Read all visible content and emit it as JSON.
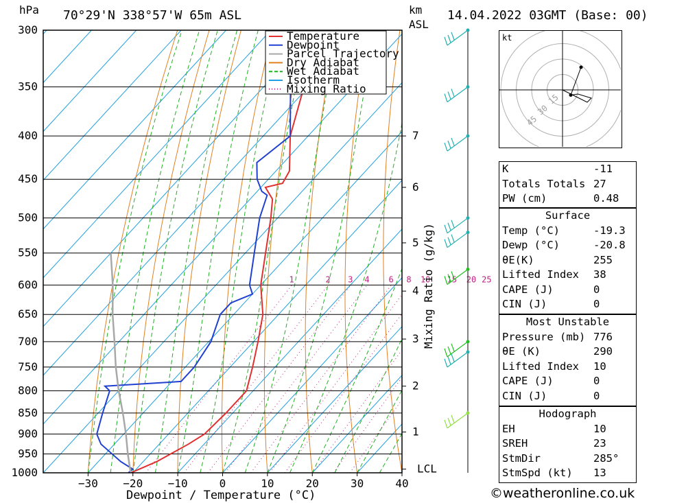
{
  "header": {
    "location": "70°29'N  338°57'W  65m  ASL",
    "datetime": "14.04.2022  03GMT  (Base: 00)",
    "hpa_label": "hPa",
    "km_label": "km",
    "asl_label": "ASL"
  },
  "legend": [
    {
      "label": "Temperature",
      "color": "#e03030",
      "style": "solid"
    },
    {
      "label": "Dewpoint",
      "color": "#2040d0",
      "style": "solid"
    },
    {
      "label": "Parcel Trajectory",
      "color": "#a8a8a8",
      "style": "solid"
    },
    {
      "label": "Dry Adiabat",
      "color": "#e08020",
      "style": "solid"
    },
    {
      "label": "Wet Adiabat",
      "color": "#20b020",
      "style": "dashed"
    },
    {
      "label": "Isotherm",
      "color": "#20a0e0",
      "style": "solid"
    },
    {
      "label": "Mixing Ratio",
      "color": "#c02080",
      "style": "dotted"
    }
  ],
  "chart_data": {
    "type": "line",
    "subtype": "skew-T log-P",
    "xlabel": "Dewpoint / Temperature (°C)",
    "ylabel": "hPa",
    "right_label": "Mixing Ratio (g/kg)",
    "xlim": [
      -40,
      40
    ],
    "ylim": [
      1000,
      300
    ],
    "x_ticks": [
      -30,
      -20,
      -10,
      0,
      10,
      20,
      30,
      40
    ],
    "pressure_ticks": [
      300,
      350,
      400,
      450,
      500,
      550,
      600,
      650,
      700,
      750,
      800,
      850,
      900,
      950,
      1000
    ],
    "km_ticks": [
      {
        "label": "7",
        "p": 400
      },
      {
        "label": "6",
        "p": 460
      },
      {
        "label": "5",
        "p": 535
      },
      {
        "label": "4",
        "p": 610
      },
      {
        "label": "3",
        "p": 695
      },
      {
        "label": "2",
        "p": 790
      },
      {
        "label": "1",
        "p": 895
      },
      {
        "label": "LCL",
        "p": 990
      }
    ],
    "mixing_ratio_labels": [
      "1",
      "2",
      "3",
      "4",
      "6",
      "8",
      "10",
      "15",
      "20",
      "25"
    ],
    "mixing_ratio_values": [
      1,
      2,
      3,
      4,
      6,
      8,
      10,
      15,
      20,
      25
    ],
    "series": [
      {
        "name": "Temperature",
        "color": "#e03030",
        "points": [
          [
            1000,
            -20.5
          ],
          [
            990,
            -19.3
          ],
          [
            970,
            -17
          ],
          [
            925,
            -13.5
          ],
          [
            900,
            -12
          ],
          [
            850,
            -11.5
          ],
          [
            800,
            -11.5
          ],
          [
            750,
            -15
          ],
          [
            700,
            -19
          ],
          [
            650,
            -23.5
          ],
          [
            600,
            -30
          ],
          [
            550,
            -35.5
          ],
          [
            500,
            -41.5
          ],
          [
            475,
            -45
          ],
          [
            460,
            -49
          ],
          [
            455,
            -46
          ],
          [
            440,
            -47
          ],
          [
            400,
            -54
          ],
          [
            350,
            -61
          ],
          [
            300,
            -68
          ]
        ]
      },
      {
        "name": "Dewpoint",
        "color": "#2040d0",
        "points": [
          [
            1000,
            -21
          ],
          [
            990,
            -20.8
          ],
          [
            970,
            -25
          ],
          [
            925,
            -33
          ],
          [
            900,
            -36
          ],
          [
            850,
            -39
          ],
          [
            800,
            -42
          ],
          [
            790,
            -44
          ],
          [
            780,
            -28
          ],
          [
            750,
            -28
          ],
          [
            700,
            -29.5
          ],
          [
            650,
            -33
          ],
          [
            630,
            -33
          ],
          [
            615,
            -30
          ],
          [
            600,
            -32.5
          ],
          [
            550,
            -38
          ],
          [
            500,
            -44
          ],
          [
            470,
            -47
          ],
          [
            465,
            -49
          ],
          [
            450,
            -52.5
          ],
          [
            430,
            -56
          ],
          [
            400,
            -54
          ],
          [
            350,
            -64
          ],
          [
            300,
            -73
          ]
        ]
      },
      {
        "name": "Parcel Trajectory",
        "color": "#a8a8a8",
        "points": [
          [
            1000,
            -20.5
          ],
          [
            950,
            -25
          ],
          [
            900,
            -29.5
          ],
          [
            850,
            -34.5
          ],
          [
            800,
            -40
          ],
          [
            750,
            -45.5
          ],
          [
            700,
            -51
          ],
          [
            650,
            -57
          ],
          [
            600,
            -63
          ],
          [
            550,
            -70
          ]
        ]
      }
    ],
    "wind_barbs": [
      {
        "p": 300,
        "color": "#20b0b0"
      },
      {
        "p": 350,
        "color": "#20b0b0"
      },
      {
        "p": 400,
        "color": "#20b0b0"
      },
      {
        "p": 500,
        "color": "#20b0b0"
      },
      {
        "p": 520,
        "color": "#20b0b0"
      },
      {
        "p": 575,
        "color": "#20c020"
      },
      {
        "p": 700,
        "color": "#20c020"
      },
      {
        "p": 720,
        "color": "#20b0b0"
      },
      {
        "p": 850,
        "color": "#90e040"
      }
    ],
    "hodograph": {
      "unit": "kt",
      "ring_labels": [
        "15",
        "30",
        "45"
      ],
      "points": [
        [
          18,
          22
        ],
        [
          8,
          -5
        ],
        [
          15,
          -4
        ],
        [
          28,
          -8
        ],
        [
          24,
          -12
        ],
        [
          10,
          -5
        ],
        [
          0,
          0
        ]
      ]
    }
  },
  "indices": {
    "block1": [
      {
        "label": "K",
        "value": "-11"
      },
      {
        "label": "Totals Totals",
        "value": "27"
      },
      {
        "label": "PW (cm)",
        "value": "0.48"
      }
    ],
    "surface": {
      "title": "Surface",
      "rows": [
        {
          "label": "Temp (°C)",
          "value": "-19.3"
        },
        {
          "label": "Dewp (°C)",
          "value": "-20.8"
        },
        {
          "label": "θE(K)",
          "value": "255"
        },
        {
          "label": "Lifted Index",
          "value": "38"
        },
        {
          "label": "CAPE (J)",
          "value": "0"
        },
        {
          "label": "CIN (J)",
          "value": "0"
        }
      ]
    },
    "most_unstable": {
      "title": "Most Unstable",
      "rows": [
        {
          "label": "Pressure (mb)",
          "value": "776"
        },
        {
          "label": "θE (K)",
          "value": "290"
        },
        {
          "label": "Lifted Index",
          "value": "10"
        },
        {
          "label": "CAPE (J)",
          "value": "0"
        },
        {
          "label": "CIN (J)",
          "value": "0"
        }
      ]
    },
    "hodograph": {
      "title": "Hodograph",
      "rows": [
        {
          "label": "EH",
          "value": "10"
        },
        {
          "label": "SREH",
          "value": "23"
        },
        {
          "label": "StmDir",
          "value": "285°"
        },
        {
          "label": "StmSpd (kt)",
          "value": "13"
        }
      ]
    }
  },
  "credit": "©weatheronline.co.uk"
}
